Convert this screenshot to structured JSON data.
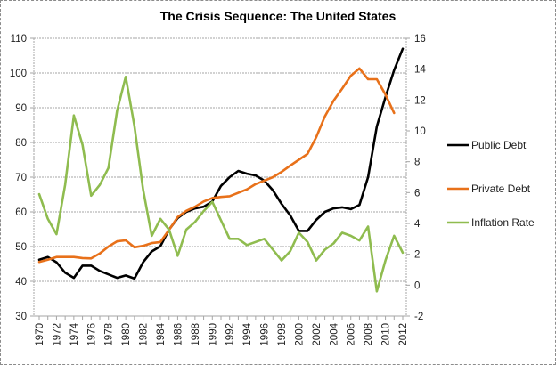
{
  "chart_data": {
    "type": "line",
    "title": "The Crisis Sequence: The United States",
    "xlabel": "",
    "ylabel_left": "",
    "ylabel_right": "",
    "x": [
      1970,
      1971,
      1972,
      1973,
      1974,
      1975,
      1976,
      1977,
      1978,
      1979,
      1980,
      1981,
      1982,
      1983,
      1984,
      1985,
      1986,
      1987,
      1988,
      1989,
      1990,
      1991,
      1992,
      1993,
      1994,
      1995,
      1996,
      1997,
      1998,
      1999,
      2000,
      2001,
      2002,
      2003,
      2004,
      2005,
      2006,
      2007,
      2008,
      2009,
      2010,
      2011,
      2012
    ],
    "x_tick_labels": [
      "1970",
      "1972",
      "1974",
      "1976",
      "1978",
      "1980",
      "1982",
      "1984",
      "1986",
      "1988",
      "1990",
      "1992",
      "1994",
      "1996",
      "1998",
      "2000",
      "2002",
      "2004",
      "2006",
      "2008",
      "2010",
      "2012"
    ],
    "ylim_left": [
      30,
      110
    ],
    "y_ticks_left": [
      30,
      40,
      50,
      60,
      70,
      80,
      90,
      100,
      110
    ],
    "ylim_right": [
      -2,
      16
    ],
    "y_ticks_right": [
      -2,
      0,
      2,
      4,
      6,
      8,
      10,
      12,
      14,
      16
    ],
    "grid": true,
    "legend_position": "right",
    "series": [
      {
        "name": "Public Debt",
        "axis": "left",
        "color": "#000000",
        "values": [
          46.2,
          47.0,
          45.5,
          42.5,
          41.0,
          44.5,
          44.5,
          43.0,
          42.0,
          41.0,
          41.7,
          40.8,
          45.5,
          48.6,
          50.1,
          54.9,
          58.2,
          60.0,
          61.0,
          61.5,
          63.0,
          67.5,
          70.0,
          71.8,
          71.0,
          70.5,
          69.0,
          66.2,
          62.3,
          59.0,
          54.5,
          54.5,
          57.7,
          60.0,
          61.0,
          61.3,
          60.8,
          62.0,
          70.0,
          84.6,
          93.0,
          100.8,
          107.0
        ]
      },
      {
        "name": "Private Debt",
        "axis": "left",
        "color": "#e8711a",
        "values": [
          45.6,
          46.2,
          47.0,
          47.0,
          47.0,
          46.7,
          46.6,
          48.0,
          50.0,
          51.5,
          51.8,
          49.8,
          50.2,
          51.0,
          51.3,
          54.8,
          58.5,
          60.3,
          61.5,
          63.0,
          64.0,
          64.3,
          64.5,
          65.5,
          66.5,
          68.0,
          69.0,
          70.0,
          71.5,
          73.3,
          75.0,
          76.7,
          81.5,
          87.5,
          92.0,
          95.5,
          99.2,
          101.3,
          98.2,
          98.2,
          93.8,
          88.5,
          null
        ]
      },
      {
        "name": "Inflation Rate",
        "axis": "right",
        "color": "#8fbc4f",
        "values": [
          5.9,
          4.3,
          3.3,
          6.5,
          11.0,
          9.1,
          5.8,
          6.5,
          7.6,
          11.3,
          13.5,
          10.3,
          6.2,
          3.2,
          4.3,
          3.6,
          1.9,
          3.6,
          4.1,
          4.8,
          5.4,
          4.2,
          3.0,
          3.0,
          2.6,
          2.8,
          3.0,
          2.3,
          1.6,
          2.2,
          3.4,
          2.8,
          1.6,
          2.3,
          2.7,
          3.4,
          3.2,
          2.9,
          3.8,
          -0.4,
          1.6,
          3.2,
          2.1
        ]
      }
    ]
  }
}
